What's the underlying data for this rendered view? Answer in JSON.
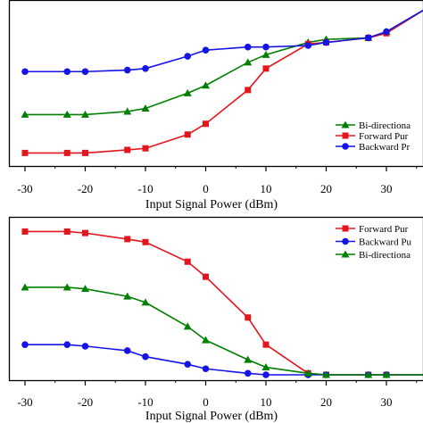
{
  "chart_data": [
    {
      "type": "line",
      "xlabel": "Input Signal Power (dBm)",
      "ylabel": "",
      "xlim": [
        -32,
        38
      ],
      "ylim": [
        0,
        100
      ],
      "xticks": [
        -30,
        -20,
        -10,
        0,
        10,
        20,
        30
      ],
      "yticks_visible": false,
      "grid": false,
      "legend_position": "right",
      "legend_entries": [
        "Bi-directiona",
        "Forward Pur",
        "Backward Pr"
      ],
      "series": [
        {
          "name": "Bi-directiona",
          "color": "#008000",
          "marker": "triangle",
          "x": [
            -30,
            -23,
            -20,
            -13,
            -10,
            -3,
            0,
            7,
            10,
            17,
            20,
            27,
            30,
            37
          ],
          "y": [
            30,
            30,
            30,
            32,
            34,
            44,
            49,
            64,
            69,
            77,
            79,
            80,
            84,
            100
          ]
        },
        {
          "name": "Forward Pur",
          "color": "#e3161d",
          "marker": "square",
          "x": [
            -30,
            -23,
            -20,
            -13,
            -10,
            -3,
            0,
            7,
            10,
            17,
            20,
            27,
            30,
            37
          ],
          "y": [
            5,
            5,
            5,
            7,
            8,
            17,
            24,
            46,
            60,
            76,
            77,
            80,
            83,
            100
          ]
        },
        {
          "name": "Backward Pr",
          "color": "#1414e6",
          "marker": "circle",
          "x": [
            -30,
            -23,
            -20,
            -13,
            -10,
            -3,
            0,
            7,
            10,
            17,
            20,
            27,
            30,
            37
          ],
          "y": [
            58,
            58,
            58,
            59,
            60,
            68,
            72,
            74,
            74,
            75,
            77,
            80,
            84,
            100
          ]
        }
      ]
    },
    {
      "type": "line",
      "xlabel": "Input Signal Power (dBm)",
      "ylabel": "",
      "xlim": [
        -32,
        38
      ],
      "ylim": [
        0,
        100
      ],
      "xticks": [
        -30,
        -20,
        -10,
        0,
        10,
        20,
        30
      ],
      "yticks_visible": false,
      "grid": false,
      "legend_position": "top-right",
      "legend_entries": [
        "Forward Pur",
        "Backward Pu",
        "Bi-directiona"
      ],
      "series": [
        {
          "name": "Forward Pur",
          "color": "#e3161d",
          "marker": "square",
          "x": [
            -30,
            -23,
            -20,
            -13,
            -10,
            -3,
            0,
            7,
            10,
            17,
            20,
            27,
            30,
            37
          ],
          "y": [
            95,
            95,
            94,
            90,
            88,
            75,
            65,
            38,
            20,
            1,
            0,
            0,
            0,
            0
          ]
        },
        {
          "name": "Backward Pu",
          "color": "#1414e6",
          "marker": "circle",
          "x": [
            -30,
            -23,
            -20,
            -13,
            -10,
            -3,
            0,
            7,
            10,
            17,
            20,
            27,
            30,
            37
          ],
          "y": [
            20,
            20,
            19,
            16,
            12,
            7,
            4,
            1,
            0,
            0,
            0,
            0,
            0,
            0
          ]
        },
        {
          "name": "Bi-directiona",
          "color": "#008000",
          "marker": "triangle",
          "x": [
            -30,
            -23,
            -20,
            -13,
            -10,
            -3,
            0,
            7,
            10,
            17,
            20,
            27,
            30,
            37
          ],
          "y": [
            58,
            58,
            57,
            52,
            48,
            32,
            23,
            10,
            5,
            1,
            0,
            0,
            0,
            0
          ]
        }
      ]
    }
  ]
}
